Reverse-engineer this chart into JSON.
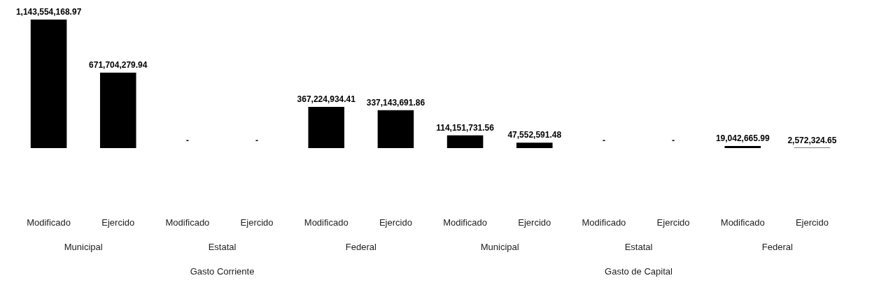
{
  "chart_data": {
    "type": "bar",
    "categories": [
      "Modificado",
      "Ejercido",
      "Modificado",
      "Ejercido",
      "Modificado",
      "Ejercido",
      "Modificado",
      "Ejercido",
      "Modificado",
      "Ejercido",
      "Modificado",
      "Ejercido"
    ],
    "values": [
      1143554168.97,
      671704279.94,
      0,
      0,
      367224934.41,
      337143691.86,
      114151731.56,
      47552591.48,
      0,
      0,
      19042665.99,
      2572324.65
    ],
    "value_labels": [
      "1,143,554,168.97",
      "671,704,279.94",
      "-",
      "-",
      "367,224,934.41",
      "337,143,691.86",
      "114,151,731.56",
      "47,552,591.48",
      "-",
      "-",
      "19,042,665.99",
      "2,572,324.65"
    ],
    "color": "#000000",
    "annotations": [
      "Municipal",
      "Estatal",
      "Federal",
      "Municipal",
      "Estatal",
      "Federal",
      "Gasto Corriente",
      "Gasto de Capital"
    ],
    "data_labels": false
  }
}
